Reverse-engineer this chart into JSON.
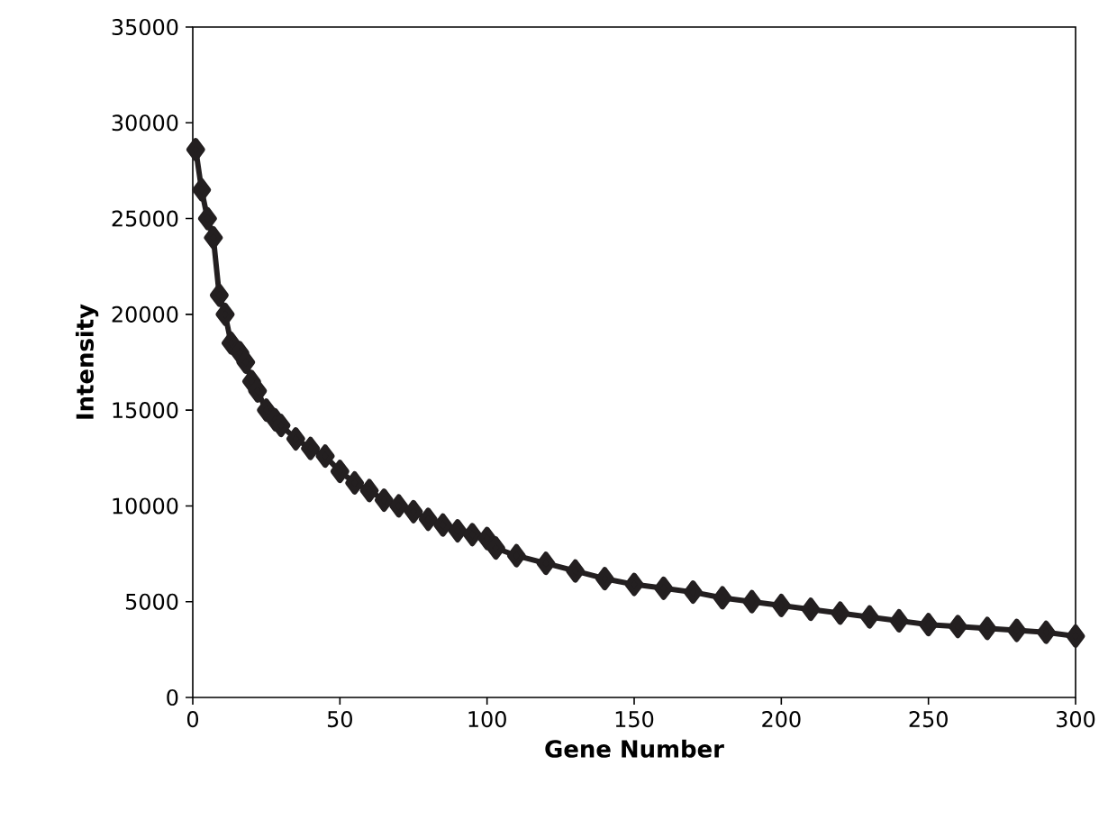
{
  "chart_data": {
    "type": "line",
    "xlabel": "Gene Number",
    "ylabel": "Intensity",
    "xlim": [
      0,
      300
    ],
    "xticks": [
      0,
      50,
      100,
      150,
      200,
      250,
      300
    ],
    "ylim": [
      0,
      35000
    ],
    "yticks": [
      0,
      5000,
      10000,
      15000,
      20000,
      25000,
      30000,
      35000
    ],
    "marker": "diamond",
    "line_style": "solid",
    "series": [
      {
        "color": "#231f20",
        "x": [
          1,
          3,
          5,
          7,
          9,
          11,
          13,
          16,
          18,
          20,
          22,
          25,
          28,
          30,
          35,
          40,
          45,
          50,
          55,
          60,
          65,
          70,
          75,
          80,
          85,
          90,
          95,
          100,
          103,
          110,
          120,
          130,
          140,
          150,
          160,
          170,
          180,
          190,
          200,
          210,
          220,
          230,
          240,
          250,
          260,
          270,
          280,
          290,
          300
        ],
        "values": [
          28600,
          26500,
          25000,
          24000,
          21000,
          20000,
          18500,
          18000,
          17500,
          16500,
          16000,
          15000,
          14500,
          14200,
          13500,
          13000,
          12600,
          11800,
          11200,
          10800,
          10300,
          10000,
          9700,
          9300,
          9000,
          8700,
          8500,
          8300,
          7800,
          7400,
          7000,
          6600,
          6200,
          5900,
          5700,
          5500,
          5200,
          5000,
          4800,
          4600,
          4400,
          4200,
          4000,
          3800,
          3700,
          3600,
          3500,
          3400,
          3200
        ]
      }
    ]
  }
}
